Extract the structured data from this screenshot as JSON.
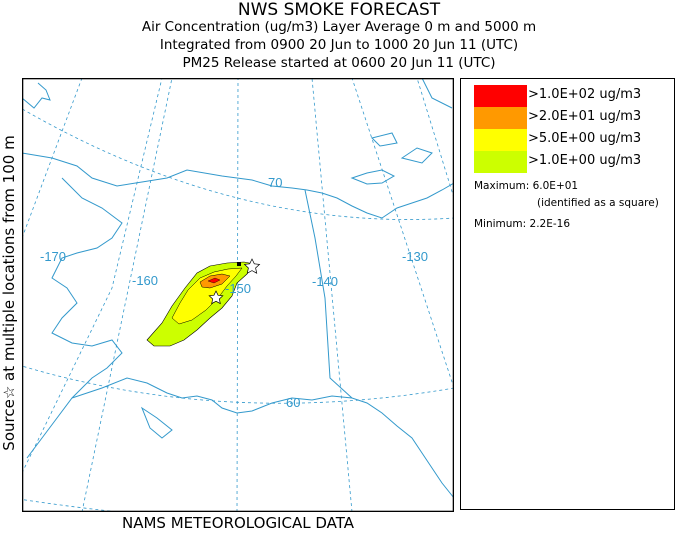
{
  "header": {
    "title": "NWS SMOKE FORECAST",
    "line2": "Air Concentration (ug/m3) Layer Average    0 m and  5000 m",
    "line3": "Integrated from 0900 20 Jun to 1000 20 Jun 11 (UTC)",
    "line4": "PM25 Release started at 0600 20 Jun 11 (UTC)"
  },
  "side_label": "Source☆  at multiple locations  from   100 m",
  "footer": "NAMS METEOROLOGICAL DATA",
  "map": {
    "latitude_labels": [
      "70",
      "60"
    ],
    "longitude_labels": [
      "-170",
      "-160",
      "-150",
      "-140",
      "-130"
    ],
    "colors": {
      "coast": "#3399cc",
      "graticule": "#3399cc"
    },
    "source_marker": "star",
    "max_marker": "square"
  },
  "legend": {
    "entries": [
      {
        "label": ">1.0E+02 ug/m3",
        "color": "#ff0000"
      },
      {
        "label": ">2.0E+01 ug/m3",
        "color": "#ff9900"
      },
      {
        "label": ">5.0E+00 ug/m3",
        "color": "#ffff00"
      },
      {
        "label": ">1.0E+00 ug/m3",
        "color": "#ccff00"
      }
    ],
    "maximum": "Maximum: 6.0E+01",
    "maximum_note": "(identified as a square)",
    "minimum": "Minimum: 2.2E-16"
  }
}
